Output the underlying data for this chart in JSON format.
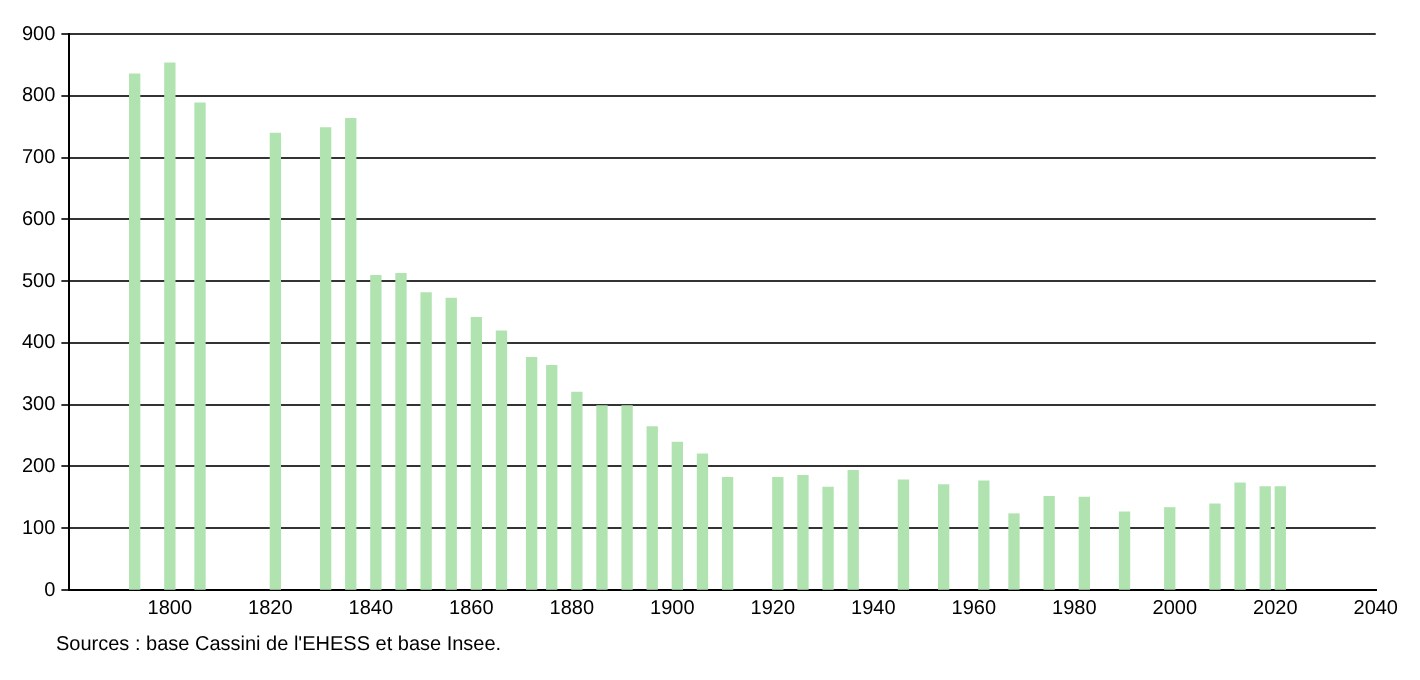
{
  "chart_data": {
    "type": "bar",
    "x": [
      1793,
      1800,
      1806,
      1821,
      1831,
      1836,
      1841,
      1846,
      1851,
      1856,
      1861,
      1866,
      1872,
      1876,
      1881,
      1886,
      1891,
      1896,
      1901,
      1906,
      1911,
      1921,
      1926,
      1931,
      1936,
      1946,
      1954,
      1962,
      1968,
      1975,
      1982,
      1990,
      1999,
      2008,
      2013,
      2018,
      2021
    ],
    "values": [
      835,
      853,
      788,
      739,
      748,
      763,
      509,
      512,
      481,
      472,
      441,
      419,
      376,
      363,
      320,
      298,
      298,
      264,
      239,
      220,
      182,
      182,
      185,
      166,
      193,
      178,
      170,
      176,
      123,
      151,
      150,
      126,
      133,
      139,
      173,
      167,
      167
    ],
    "color": "#b1e3b1",
    "xlim": [
      1780,
      2040
    ],
    "xticks": [
      1800,
      1820,
      1840,
      1860,
      1880,
      1900,
      1920,
      1940,
      1960,
      1980,
      2000,
      2020,
      2040
    ],
    "ylim": [
      0,
      900
    ],
    "yticks": [
      0,
      100,
      200,
      300,
      400,
      500,
      600,
      700,
      800,
      900
    ],
    "grid": "y",
    "annotations": [
      "Sources : base Cassini de l'EHESS et base Insee."
    ]
  }
}
